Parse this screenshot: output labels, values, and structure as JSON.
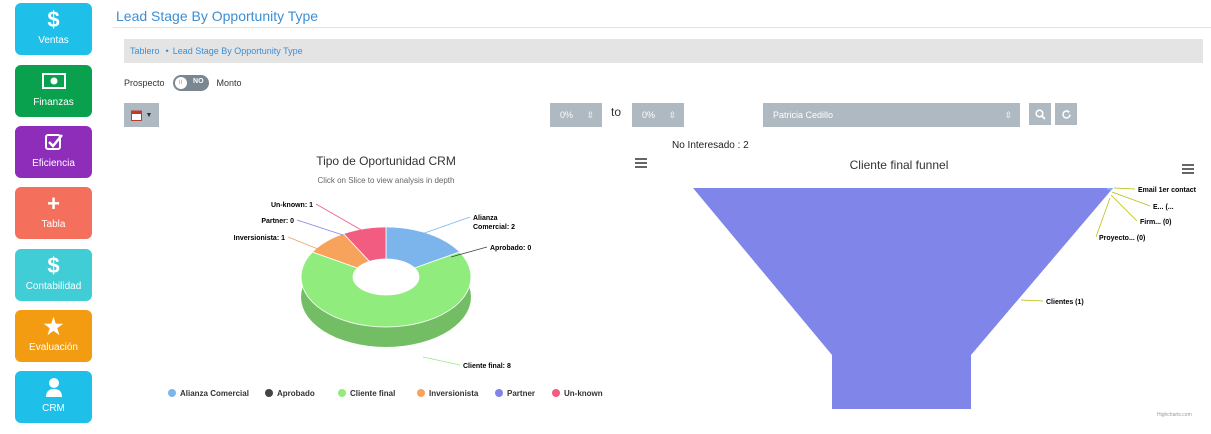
{
  "sidebar": {
    "items": [
      {
        "label": "Ventas",
        "icon": "dollar-icon",
        "glyph": "$",
        "color": "#1ec0ea"
      },
      {
        "label": "Finanzas",
        "icon": "money-icon",
        "glyph": "",
        "color": "#0aa14e"
      },
      {
        "label": "Eficiencia",
        "icon": "checkbox-icon",
        "glyph": "",
        "color": "#8e2dba"
      },
      {
        "label": "Tabla",
        "icon": "plus-icon",
        "glyph": "+",
        "color": "#f4705d"
      },
      {
        "label": "Contabilidad",
        "icon": "dollar-icon",
        "glyph": "$",
        "color": "#41cdd6"
      },
      {
        "label": "Evaluación",
        "icon": "star-icon",
        "glyph": "★",
        "color": "#f39c12"
      },
      {
        "label": "CRM",
        "icon": "user-icon",
        "glyph": "",
        "color": "#1ec0ea"
      }
    ]
  },
  "header": {
    "title": "Lead Stage By Opportunity Type"
  },
  "breadcrumb": {
    "home": "Tablero",
    "separator": "•",
    "current": "Lead Stage By Opportunity Type"
  },
  "filters": {
    "toggle_left_label": "Prospecto",
    "toggle_state": "NO",
    "toggle_right_label": "Monto",
    "pct_from": "0%",
    "to_label": "to",
    "pct_to": "0%",
    "person": "Patricia Cedillo"
  },
  "status_text": "No Interesado : 2",
  "accent_color": "#3b8fd6",
  "chart_data": [
    {
      "type": "pie",
      "variant": "donut-3d",
      "title": "Tipo de Oportunidad CRM",
      "subtitle": "Click on Slice to view analysis in depth",
      "slices": [
        {
          "name": "Alianza Comercial",
          "value": 2,
          "color": "#7cb5ec",
          "label": "Alianza Comercial: 2"
        },
        {
          "name": "Aprobado",
          "value": 0,
          "color": "#434348",
          "label": "Aprobado: 0"
        },
        {
          "name": "Cliente final",
          "value": 8,
          "color": "#90ed7d",
          "label": "Cliente final: 8"
        },
        {
          "name": "Inversionista",
          "value": 1,
          "color": "#f7a35c",
          "label": "Inversionista: 1"
        },
        {
          "name": "Partner",
          "value": 0,
          "color": "#8085e9",
          "label": "Partner: 0"
        },
        {
          "name": "Un-known",
          "value": 1,
          "color": "#f15c80",
          "label": "Un-known: 1"
        }
      ],
      "legend": [
        "Alianza Comercial",
        "Aprobado",
        "Cliente final",
        "Inversionista",
        "Partner",
        "Un-known"
      ],
      "legend_position": "bottom"
    },
    {
      "type": "funnel",
      "title": "Cliente final funnel",
      "color": "#8085e9",
      "stages": [
        {
          "label": "Clientes (1)",
          "name": "Clientes",
          "value": 1
        },
        {
          "label": "Email 1er contact",
          "name": "Email 1er contacto",
          "value": 0
        },
        {
          "label": "E... (...",
          "name": "E...",
          "value": 0
        },
        {
          "label": "Firm... (0)",
          "name": "Firma",
          "value": 0
        },
        {
          "label": "Proyecto... (0)",
          "name": "Proyecto",
          "value": 0
        }
      ],
      "credits": "Highcharts.com"
    }
  ]
}
